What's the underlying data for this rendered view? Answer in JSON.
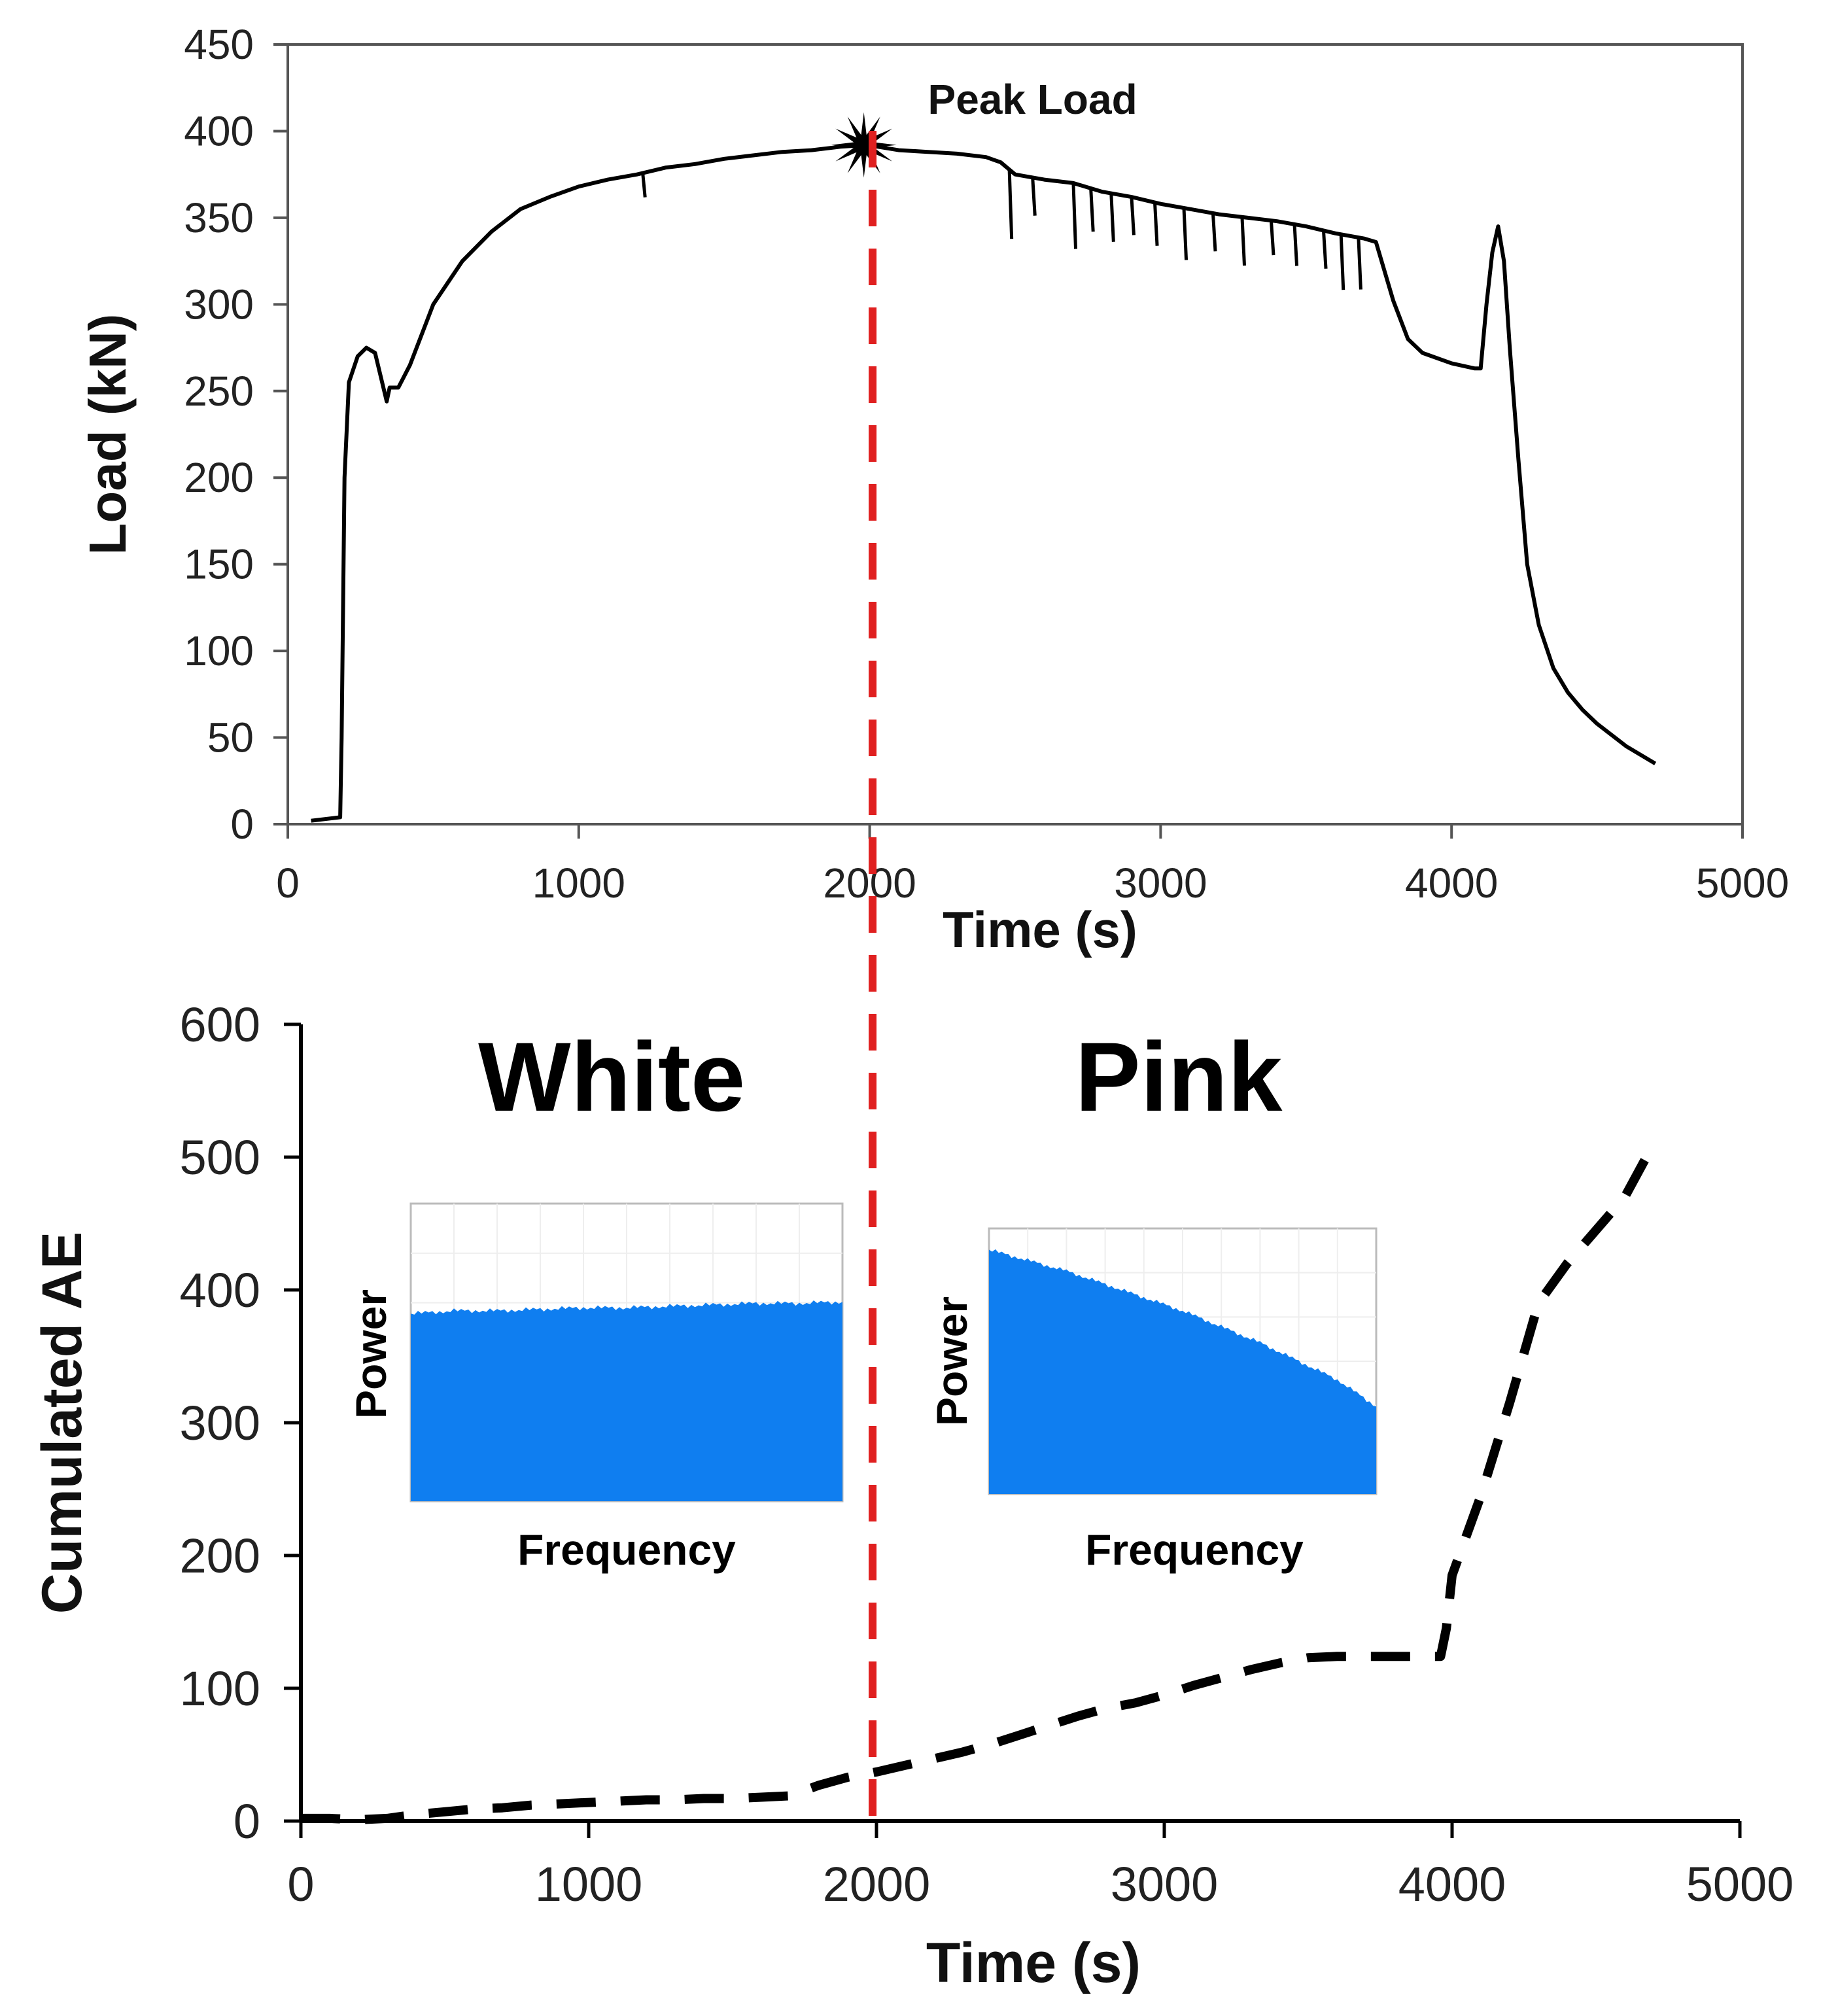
{
  "chart_data": [
    {
      "type": "line",
      "title": "",
      "xlabel": "Time (s)",
      "ylabel": "Load (kN)",
      "xlim": [
        0,
        5000
      ],
      "ylim": [
        0,
        450
      ],
      "xticks": [
        0,
        1000,
        2000,
        3000,
        4000,
        5000
      ],
      "yticks": [
        0,
        50,
        100,
        150,
        200,
        250,
        300,
        350,
        400,
        450
      ],
      "xtick_labels": [
        "0",
        "1000",
        "2000",
        "3000",
        "4000",
        "5000"
      ],
      "ytick_labels": [
        "0",
        "50",
        "100",
        "150",
        "200",
        "250",
        "300",
        "350",
        "400",
        "450"
      ],
      "grid": false,
      "series": [
        {
          "name": "Load",
          "style": "solid",
          "color": "#000000",
          "x": [
            80,
            180,
            185,
            195,
            210,
            240,
            270,
            300,
            320,
            340,
            350,
            380,
            420,
            500,
            600,
            700,
            800,
            900,
            1000,
            1100,
            1200,
            1300,
            1400,
            1500,
            1600,
            1700,
            1800,
            1900,
            1990,
            2100,
            2200,
            2300,
            2400,
            2450,
            2500,
            2600,
            2700,
            2800,
            2900,
            3000,
            3100,
            3200,
            3300,
            3400,
            3500,
            3600,
            3700,
            3740,
            3800,
            3850,
            3900,
            4000,
            4080,
            4100,
            4120,
            4140,
            4160,
            4180,
            4200,
            4230,
            4260,
            4300,
            4350,
            4400,
            4450,
            4500,
            4600,
            4700
          ],
          "y": [
            2,
            4,
            50,
            200,
            255,
            270,
            275,
            272,
            258,
            244,
            252,
            252,
            265,
            300,
            325,
            342,
            355,
            362,
            368,
            372,
            375,
            379,
            381,
            384,
            386,
            388,
            389,
            391,
            392,
            389,
            388,
            387,
            385,
            382,
            375,
            372,
            370,
            365,
            362,
            358,
            355,
            352,
            350,
            348,
            345,
            341,
            338,
            336,
            302,
            280,
            272,
            266,
            263,
            263,
            300,
            330,
            345,
            325,
            275,
            210,
            150,
            115,
            90,
            76,
            66,
            58,
            45,
            35
          ]
        },
        {
          "name": "Peak Load",
          "type": "marker",
          "x": [
            1980
          ],
          "y": [
            392
          ]
        }
      ],
      "annotations": [
        {
          "text": "Peak Load",
          "x": 2200,
          "y": 410
        }
      ],
      "vertical_line": {
        "x": 2010,
        "style": "dashed",
        "color": "#e02020"
      }
    },
    {
      "type": "line",
      "title": "",
      "xlabel": "Time (s)",
      "ylabel": "Cumulated AE",
      "xlim": [
        0,
        5000
      ],
      "ylim": [
        0,
        600
      ],
      "xticks": [
        0,
        1000,
        2000,
        3000,
        4000,
        5000
      ],
      "yticks": [
        0,
        100,
        200,
        300,
        400,
        500,
        600
      ],
      "xtick_labels": [
        "0",
        "1000",
        "2000",
        "3000",
        "4000",
        "5000"
      ],
      "ytick_labels": [
        "0",
        "100",
        "200",
        "300",
        "400",
        "500",
        "600"
      ],
      "grid": false,
      "series": [
        {
          "name": "Cumulated AE",
          "style": "dashed",
          "color": "#000000",
          "x": [
            0,
            100,
            200,
            300,
            400,
            500,
            600,
            700,
            800,
            900,
            1000,
            1100,
            1200,
            1300,
            1400,
            1500,
            1600,
            1700,
            1800,
            1900,
            2000,
            2100,
            2200,
            2300,
            2400,
            2500,
            2600,
            2700,
            2800,
            2900,
            3000,
            3100,
            3200,
            3300,
            3400,
            3500,
            3600,
            3700,
            3800,
            3900,
            3960,
            3980,
            4000,
            4100,
            4200,
            4300,
            4400,
            4500,
            4600,
            4700
          ],
          "y": [
            2,
            2,
            1,
            2,
            5,
            7,
            9,
            10,
            12,
            13,
            14,
            15,
            16,
            16,
            17,
            17,
            18,
            19,
            27,
            33,
            37,
            42,
            47,
            52,
            58,
            65,
            72,
            79,
            85,
            89,
            95,
            102,
            108,
            114,
            119,
            123,
            124,
            124,
            124,
            124,
            124,
            145,
            185,
            245,
            315,
            390,
            420,
            445,
            470,
            510
          ]
        }
      ],
      "vertical_line": {
        "x": 2010,
        "style": "dashed",
        "color": "#e02020"
      },
      "annotations": [
        {
          "text": "White",
          "x": 1080,
          "y": 535
        },
        {
          "text": "Pink",
          "x": 3050,
          "y": 535
        }
      ],
      "insets": [
        {
          "name": "white-noise-spectrum",
          "type": "area",
          "xlabel": "Frequency",
          "ylabel": "Power",
          "color": "#0f7ef0",
          "x": [
            0,
            0.1,
            0.2,
            0.3,
            0.4,
            0.5,
            0.6,
            0.7,
            0.8,
            0.9,
            1.0
          ],
          "y": [
            0.63,
            0.64,
            0.64,
            0.645,
            0.65,
            0.65,
            0.655,
            0.66,
            0.665,
            0.665,
            0.67
          ]
        },
        {
          "name": "pink-noise-spectrum",
          "type": "area",
          "xlabel": "Frequency",
          "ylabel": "Power",
          "color": "#0f7ef0",
          "x": [
            0,
            0.1,
            0.2,
            0.3,
            0.4,
            0.5,
            0.6,
            0.7,
            0.8,
            0.9,
            1.0
          ],
          "y": [
            0.92,
            0.88,
            0.84,
            0.79,
            0.74,
            0.69,
            0.63,
            0.57,
            0.5,
            0.43,
            0.33
          ]
        }
      ]
    }
  ]
}
